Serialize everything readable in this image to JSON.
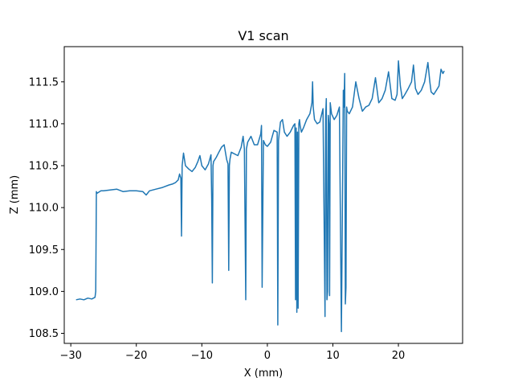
{
  "chart_data": {
    "type": "line",
    "title": "V1 scan",
    "xlabel": "X (mm)",
    "ylabel": "Z (mm)",
    "xlim": [
      -31.0,
      29.8
    ],
    "ylim": [
      108.38,
      111.92
    ],
    "xticks": [
      -30,
      -20,
      -10,
      0,
      10,
      20
    ],
    "xtick_labels": [
      "−30",
      "−20",
      "−10",
      "0",
      "10",
      "20"
    ],
    "yticks": [
      108.5,
      109.0,
      109.5,
      110.0,
      110.5,
      111.0,
      111.5
    ],
    "ytick_labels": [
      "108.5",
      "109.0",
      "109.5",
      "110.0",
      "110.5",
      "111.0",
      "111.5"
    ],
    "grid": false,
    "series": [
      {
        "color": "#1f77b4",
        "x": [
          -29.2,
          -28.6,
          -28.0,
          -27.4,
          -26.8,
          -26.3,
          -26.2,
          -26.1,
          -26.0,
          -25.6,
          -25.4,
          -25.0,
          -24.0,
          -23.0,
          -22.0,
          -21.0,
          -20.0,
          -19.0,
          -18.5,
          -18.0,
          -17.0,
          -16.0,
          -15.0,
          -14.5,
          -14.0,
          -13.6,
          -13.4,
          -13.2,
          -13.1,
          -13.0,
          -12.8,
          -12.5,
          -12.0,
          -11.5,
          -11.0,
          -10.6,
          -10.3,
          -10.0,
          -9.5,
          -9.0,
          -8.6,
          -8.5,
          -8.4,
          -8.3,
          -8.2,
          -7.8,
          -7.4,
          -7.0,
          -6.6,
          -6.2,
          -6.0,
          -5.9,
          -5.8,
          -5.7,
          -5.5,
          -5.0,
          -4.5,
          -4.0,
          -3.7,
          -3.5,
          -3.3,
          -3.2,
          -3.0,
          -2.5,
          -2.0,
          -1.5,
          -1.0,
          -0.9,
          -0.8,
          -0.6,
          -0.3,
          0.0,
          0.5,
          1.0,
          1.5,
          1.6,
          1.7,
          1.8,
          2.0,
          2.3,
          2.6,
          3.0,
          3.5,
          4.0,
          4.2,
          4.3,
          4.4,
          4.5,
          4.6,
          4.7,
          4.8,
          4.9,
          5.0,
          5.2,
          5.5,
          6.0,
          6.5,
          6.8,
          6.9,
          7.0,
          7.2,
          7.6,
          8.0,
          8.5,
          8.8,
          8.9,
          9.0,
          9.1,
          9.2,
          9.3,
          9.4,
          9.5,
          9.6,
          9.8,
          10.2,
          10.6,
          11.0,
          11.3,
          11.6,
          11.7,
          11.8,
          11.9,
          12.0,
          12.1,
          12.2,
          12.5,
          13.0,
          13.5,
          14.0,
          14.5,
          15.0,
          15.5,
          16.0,
          16.5,
          17.0,
          17.5,
          18.0,
          18.5,
          19.0,
          19.5,
          19.8,
          20.0,
          20.3,
          20.6,
          21.0,
          21.5,
          22.0,
          22.3,
          22.6,
          23.0,
          23.5,
          24.0,
          24.5,
          24.8,
          25.0,
          25.4,
          25.8,
          26.2,
          26.5,
          26.8,
          27.0
        ],
        "y": [
          108.9,
          108.91,
          108.9,
          108.92,
          108.91,
          108.93,
          109.0,
          110.19,
          110.17,
          110.19,
          110.2,
          110.2,
          110.21,
          110.22,
          110.19,
          110.2,
          110.2,
          110.19,
          110.15,
          110.2,
          110.22,
          110.24,
          110.27,
          110.28,
          110.3,
          110.33,
          110.4,
          110.35,
          109.66,
          110.5,
          110.65,
          110.5,
          110.46,
          110.43,
          110.48,
          110.55,
          110.62,
          110.5,
          110.45,
          110.52,
          110.63,
          110.1,
          109.1,
          110.5,
          110.55,
          110.6,
          110.66,
          110.72,
          110.75,
          110.57,
          110.52,
          109.25,
          110.5,
          110.58,
          110.66,
          110.64,
          110.62,
          110.72,
          110.85,
          110.7,
          108.9,
          110.7,
          110.78,
          110.85,
          110.75,
          110.75,
          110.88,
          110.98,
          109.05,
          110.8,
          110.75,
          110.73,
          110.78,
          110.92,
          110.9,
          108.6,
          110.8,
          110.88,
          111.02,
          111.05,
          110.9,
          110.85,
          110.9,
          110.98,
          111.0,
          108.9,
          110.95,
          108.75,
          110.9,
          108.8,
          111.0,
          111.05,
          110.98,
          110.9,
          110.95,
          111.05,
          111.12,
          111.25,
          111.5,
          111.2,
          111.05,
          111.0,
          111.02,
          111.18,
          108.7,
          111.1,
          111.3,
          108.9,
          109.0,
          111.1,
          111.0,
          108.95,
          111.25,
          111.12,
          111.05,
          111.1,
          111.2,
          108.52,
          111.4,
          111.2,
          111.6,
          108.85,
          109.05,
          111.2,
          111.15,
          111.12,
          111.2,
          111.5,
          111.3,
          111.15,
          111.2,
          111.22,
          111.3,
          111.55,
          111.25,
          111.3,
          111.4,
          111.62,
          111.3,
          111.28,
          111.35,
          111.75,
          111.45,
          111.3,
          111.35,
          111.42,
          111.5,
          111.7,
          111.42,
          111.35,
          111.4,
          111.5,
          111.73,
          111.5,
          111.38,
          111.35,
          111.4,
          111.45,
          111.65,
          111.6,
          111.63
        ]
      }
    ]
  }
}
